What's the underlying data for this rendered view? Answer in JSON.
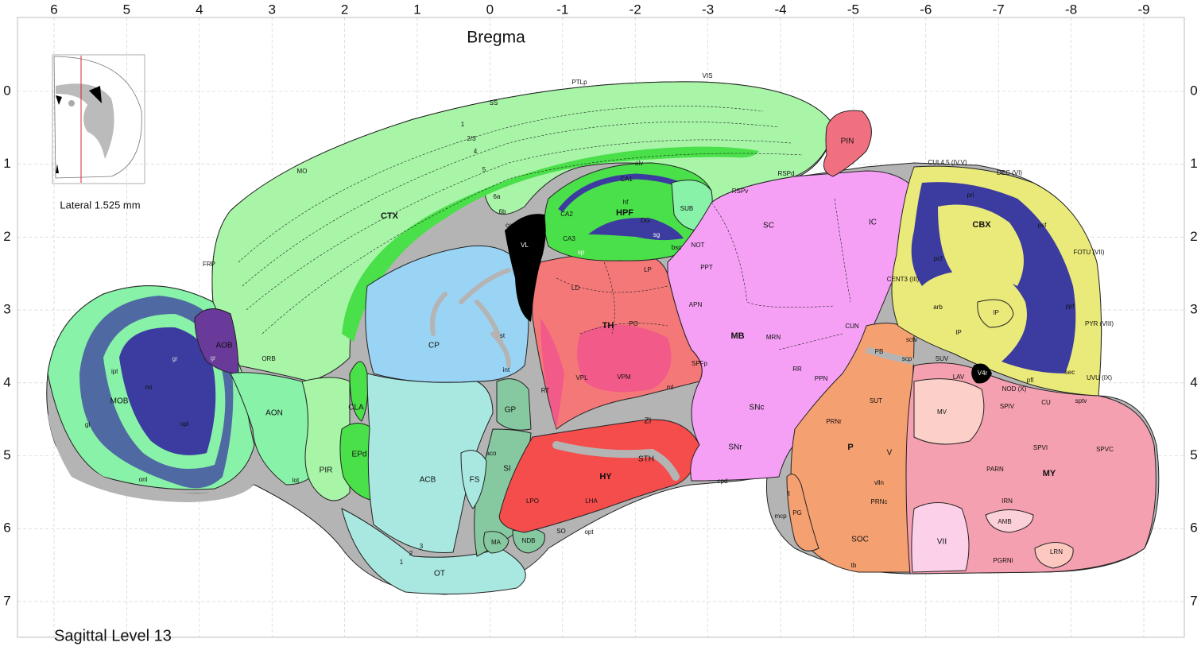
{
  "header": {
    "bregma_label": "Bregma"
  },
  "axes": {
    "top_ticks": [
      "6",
      "5",
      "4",
      "3",
      "2",
      "1",
      "0",
      "-1",
      "-2",
      "-3",
      "-4",
      "-5",
      "-6",
      "-7",
      "-8",
      "-9"
    ],
    "left_ticks": [
      "0",
      "1",
      "2",
      "3",
      "4",
      "5",
      "6",
      "7"
    ],
    "right_ticks": [
      "0",
      "1",
      "2",
      "3",
      "4",
      "5",
      "6",
      "7"
    ]
  },
  "inset": {
    "lateral_label": "Lateral 1.525 mm"
  },
  "footer": {
    "level_label": "Sagittal Level 13"
  },
  "colors": {
    "cortex": "#a8f5a8",
    "cortex_layer": "#4ae04a",
    "olfactory": "#88f2a8",
    "striatum": "#99d4f5",
    "pallidum": "#86c9a0",
    "thalamus": "#f57878",
    "hypothalamus": "#f54c4c",
    "midbrain": "#f5a0f5",
    "pons": "#f5a070",
    "medulla": "#f5a0b0",
    "cerebellum": "#eaea7a",
    "fiber": "#b4b4b4",
    "ventricle": "#000000",
    "granule": "#3c3ca0",
    "pineal": "#f07080",
    "acb": "#a8e8e0"
  },
  "regions": {
    "ctx": "CTX",
    "hpf": "HPF",
    "th": "TH",
    "hy": "HY",
    "mb": "MB",
    "p": "P",
    "my": "MY",
    "cbx": "CBX",
    "mob": "MOB",
    "aob": "AOB",
    "aon": "AON",
    "orb": "ORB",
    "pir": "PIR",
    "cla": "CLA",
    "epd": "EPd",
    "cp": "CP",
    "acb": "ACB",
    "fs": "FS",
    "si": "SI",
    "gp": "GP",
    "ot": "OT",
    "ma": "MA",
    "ndb": "NDB",
    "so": "SO",
    "opt": "opt",
    "lpo": "LPO",
    "lha": "LHA",
    "sth": "STH",
    "zi": "ZI",
    "rt": "RT",
    "vpl": "VPL",
    "vpm": "VPM",
    "ld": "LD",
    "lp": "LP",
    "po": "PO",
    "spfp": "SPFp",
    "apn": "APN",
    "mrn": "MRN",
    "rr": "RR",
    "ppn": "PPN",
    "snc": "SNc",
    "snr": "SNr",
    "sc": "SC",
    "ic": "IC",
    "cun": "CUN",
    "pin": "PIN",
    "pb": "PB",
    "sut": "SUT",
    "prnr": "PRNr",
    "v": "V",
    "prnc": "PRNc",
    "soc": "SOC",
    "pg": "PG",
    "suv": "SUV",
    "lav": "LAV",
    "mv": "MV",
    "spiv": "SPIV",
    "cu": "CU",
    "spvi": "SPVI",
    "spvc": "SPVC",
    "parn": "PARN",
    "irn": "IRN",
    "amb": "AMB",
    "vii": "VII",
    "pgrnl": "PGRNl",
    "lrn": "LRN",
    "ip1": "IP",
    "ip2": "IP",
    "v4r": "V4r",
    "vl": "VL",
    "ca1": "CA1",
    "ca2": "CA2",
    "ca3": "CA3",
    "dg": "DG",
    "sub": "SUB",
    "not": "NOT",
    "ppt": "PPT"
  },
  "small_labels": {
    "ss": "SS",
    "mo": "MO",
    "frp": "FRP",
    "ptlp": "PTLp",
    "vis": "VIS",
    "rspv": "RSPv",
    "rspd": "RSPd",
    "l1": "1",
    "l23": "2/3",
    "l4": "4",
    "l5": "5",
    "l6a": "6a",
    "l6b": "6b",
    "cc": "cc",
    "fi": "fi",
    "alv": "alv",
    "hf": "hf",
    "sp": "sp",
    "sg": "sg",
    "bsc": "bsc",
    "st": "st",
    "int": "int",
    "ml": "ml",
    "cpd": "cpd",
    "lot": "lot",
    "onl": "onl",
    "opl": "opl",
    "gl": "gl",
    "ipl": "ipl",
    "mi": "mi",
    "gr": "gr",
    "gr2": "gr",
    "aco": "aco",
    "ot1": "1",
    "ot2": "2",
    "ot3": "3",
    "scp": "scp",
    "sctv": "sctv",
    "arb": "arb",
    "vlln": "vlln",
    "mcp": "mcp",
    "tb": "tb",
    "ll": "ll",
    "sptv": "sptv",
    "cul": "CUL4,5 (IV,V)",
    "dec": "DEC (VI)",
    "fotu": "FOTU (VII)",
    "pyr": "PYR (VIII)",
    "uvu": "UVU (IX)",
    "nod": "NOD (X)",
    "cent": "CENT3 (III)",
    "pri": "pri",
    "pcf": "pcf",
    "psf": "psf",
    "ppf": "ppf",
    "sec": "sec",
    "pfl": "pfl",
    "fl": "fl"
  }
}
